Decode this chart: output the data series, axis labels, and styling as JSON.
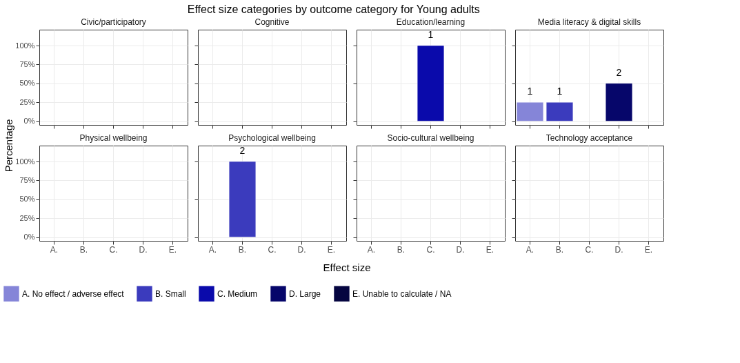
{
  "chart_data": [
    {
      "type": "other",
      "title": "Effect size categories by outcome category for Young adults",
      "xlabel": "Effect size",
      "ylabel": "Percentage"
    },
    {
      "type": "bar",
      "title": "Civic/participatory",
      "categories": [
        "A.",
        "B.",
        "C.",
        "D.",
        "E."
      ],
      "ylim": [
        -5,
        121
      ],
      "yticks": [
        {
          "value": 0,
          "label": "0%"
        },
        {
          "value": 25,
          "label": "25%"
        },
        {
          "value": 50,
          "label": "50%"
        },
        {
          "value": 75,
          "label": "75%"
        },
        {
          "value": 100,
          "label": "100%"
        }
      ],
      "grid": true,
      "legend": "bottom",
      "tick_labels": "y",
      "series": [
        {
          "name": "A. No effect / adverse effect",
          "color": "#8585d8",
          "values": [
            null,
            null,
            null,
            null,
            null
          ]
        },
        {
          "name": "B. Small",
          "color": "#3b3bbd",
          "values": [
            null,
            null,
            null,
            null,
            null
          ]
        },
        {
          "name": "C. Medium",
          "color": "#0a0aab",
          "values": [
            null,
            null,
            null,
            null,
            null
          ]
        },
        {
          "name": "D. Large",
          "color": "#06066a",
          "values": [
            null,
            null,
            null,
            null,
            null
          ]
        },
        {
          "name": "E. Unable to calculate / NA",
          "color": "#050540",
          "values": [
            null,
            null,
            null,
            null,
            null
          ]
        }
      ]
    },
    {
      "type": "bar",
      "title": "Cognitive",
      "categories": [
        "A.",
        "B.",
        "C.",
        "D.",
        "E."
      ],
      "ylim": [
        -5,
        121
      ],
      "grid": true,
      "tick_labels": false,
      "yticks": [
        0,
        25,
        50,
        75,
        100
      ],
      "series": [
        {
          "color": "#8585d8",
          "values": [
            null,
            null,
            null,
            null,
            null
          ]
        },
        {
          "color": "#3b3bbd",
          "values": [
            null,
            null,
            null,
            null,
            null
          ]
        },
        {
          "color": "#0a0aab",
          "values": [
            null,
            null,
            null,
            null,
            null
          ]
        },
        {
          "color": "#06066a",
          "values": [
            null,
            null,
            null,
            null,
            null
          ]
        },
        {
          "color": "#050540",
          "values": [
            null,
            null,
            null,
            null,
            null
          ]
        }
      ]
    },
    {
      "type": "bar",
      "title": "Education/learning",
      "categories": [
        "A.",
        "B.",
        "C.",
        "D.",
        "E."
      ],
      "ylim": [
        -5,
        121
      ],
      "yticks": [
        0,
        25,
        50,
        75,
        100
      ],
      "grid": true,
      "tick_labels": false,
      "annotations": [
        {
          "text": "1",
          "x": "C.",
          "y": 100
        }
      ],
      "series": [
        {
          "color": "#8585d8",
          "values": [
            null,
            null,
            null,
            null,
            null
          ]
        },
        {
          "color": "#3b3bbd",
          "values": [
            null,
            null,
            null,
            null,
            null
          ]
        },
        {
          "color": "#0a0aab",
          "values": [
            null,
            null,
            100,
            null,
            null
          ]
        },
        {
          "color": "#06066a",
          "values": [
            null,
            null,
            null,
            null,
            null
          ]
        },
        {
          "color": "#050540",
          "values": [
            null,
            null,
            null,
            null,
            null
          ]
        }
      ]
    },
    {
      "type": "bar",
      "title": "Media literacy & digital skills",
      "categories": [
        "A.",
        "B.",
        "C.",
        "D.",
        "E."
      ],
      "ylim": [
        -5,
        121
      ],
      "yticks": [
        0,
        25,
        50,
        75,
        100
      ],
      "grid": true,
      "tick_labels": false,
      "annotations": [
        {
          "text": "1",
          "x": "A.",
          "y": 25
        },
        {
          "text": "1",
          "x": "B.",
          "y": 25
        },
        {
          "text": "2",
          "x": "D.",
          "y": 50
        }
      ],
      "series": [
        {
          "color": "#8585d8",
          "values": [
            25,
            null,
            null,
            null,
            null
          ]
        },
        {
          "color": "#3b3bbd",
          "values": [
            null,
            25,
            null,
            null,
            null
          ]
        },
        {
          "color": "#0a0aab",
          "values": [
            null,
            null,
            null,
            null,
            null
          ]
        },
        {
          "color": "#06066a",
          "values": [
            null,
            null,
            null,
            50,
            null
          ]
        },
        {
          "color": "#050540",
          "values": [
            null,
            null,
            null,
            null,
            null
          ]
        }
      ]
    },
    {
      "type": "bar",
      "title": "Physical wellbeing",
      "categories": [
        "A.",
        "B.",
        "C.",
        "D.",
        "E."
      ],
      "ylim": [
        -5,
        121
      ],
      "yticks": [
        {
          "value": 0,
          "label": "0%"
        },
        {
          "value": 25,
          "label": "25%"
        },
        {
          "value": 50,
          "label": "50%"
        },
        {
          "value": 75,
          "label": "75%"
        },
        {
          "value": 100,
          "label": "100%"
        }
      ],
      "grid": true,
      "series": [
        {
          "color": "#8585d8",
          "values": [
            null,
            null,
            null,
            null,
            null
          ]
        },
        {
          "color": "#3b3bbd",
          "values": [
            null,
            null,
            null,
            null,
            null
          ]
        },
        {
          "color": "#0a0aab",
          "values": [
            null,
            null,
            null,
            null,
            null
          ]
        },
        {
          "color": "#06066a",
          "values": [
            null,
            null,
            null,
            null,
            null
          ]
        },
        {
          "color": "#050540",
          "values": [
            null,
            null,
            null,
            null,
            null
          ]
        }
      ]
    },
    {
      "type": "bar",
      "title": "Psychological wellbeing",
      "categories": [
        "A.",
        "B.",
        "C.",
        "D.",
        "E."
      ],
      "ylim": [
        -5,
        121
      ],
      "yticks": [
        0,
        25,
        50,
        75,
        100
      ],
      "grid": true,
      "tick_labels": "x",
      "annotations": [
        {
          "text": "2",
          "x": "B.",
          "y": 100
        }
      ],
      "series": [
        {
          "color": "#8585d8",
          "values": [
            null,
            null,
            null,
            null,
            null
          ]
        },
        {
          "color": "#3b3bbd",
          "values": [
            null,
            100,
            null,
            null,
            null
          ]
        },
        {
          "color": "#0a0aab",
          "values": [
            null,
            null,
            null,
            null,
            null
          ]
        },
        {
          "color": "#06066a",
          "values": [
            null,
            null,
            null,
            null,
            null
          ]
        },
        {
          "color": "#050540",
          "values": [
            null,
            null,
            null,
            null,
            null
          ]
        }
      ]
    },
    {
      "type": "bar",
      "title": "Socio-cultural wellbeing",
      "categories": [
        "A.",
        "B.",
        "C.",
        "D.",
        "E."
      ],
      "ylim": [
        -5,
        121
      ],
      "yticks": [
        0,
        25,
        50,
        75,
        100
      ],
      "grid": true,
      "tick_labels": "x",
      "series": [
        {
          "color": "#8585d8",
          "values": [
            null,
            null,
            null,
            null,
            null
          ]
        },
        {
          "color": "#3b3bbd",
          "values": [
            null,
            null,
            null,
            null,
            null
          ]
        },
        {
          "color": "#0a0aab",
          "values": [
            null,
            null,
            null,
            null,
            null
          ]
        },
        {
          "color": "#06066a",
          "values": [
            null,
            null,
            null,
            null,
            null
          ]
        },
        {
          "color": "#050540",
          "values": [
            null,
            null,
            null,
            null,
            null
          ]
        }
      ]
    },
    {
      "type": "bar",
      "title": "Technology acceptance",
      "categories": [
        "A.",
        "B.",
        "C.",
        "D.",
        "E."
      ],
      "ylim": [
        -5,
        121
      ],
      "yticks": [
        0,
        25,
        50,
        75,
        100
      ],
      "grid": true,
      "tick_labels": "x",
      "series": [
        {
          "color": "#8585d8",
          "values": [
            null,
            null,
            null,
            null,
            null
          ]
        },
        {
          "color": "#3b3bbd",
          "values": [
            null,
            null,
            null,
            null,
            null
          ]
        },
        {
          "color": "#0a0aab",
          "values": [
            null,
            null,
            null,
            null,
            null
          ]
        },
        {
          "color": "#06066a",
          "values": [
            null,
            null,
            null,
            null,
            null
          ]
        },
        {
          "color": "#050540",
          "values": [
            null,
            null,
            null,
            null,
            null
          ]
        }
      ]
    }
  ]
}
